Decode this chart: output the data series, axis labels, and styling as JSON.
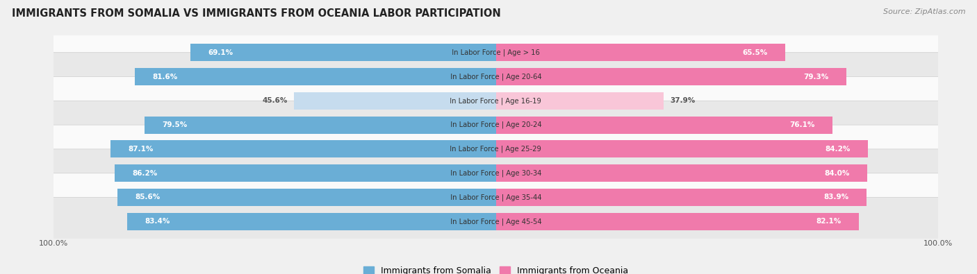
{
  "title": "IMMIGRANTS FROM SOMALIA VS IMMIGRANTS FROM OCEANIA LABOR PARTICIPATION",
  "source": "Source: ZipAtlas.com",
  "categories": [
    "In Labor Force | Age > 16",
    "In Labor Force | Age 20-64",
    "In Labor Force | Age 16-19",
    "In Labor Force | Age 20-24",
    "In Labor Force | Age 25-29",
    "In Labor Force | Age 30-34",
    "In Labor Force | Age 35-44",
    "In Labor Force | Age 45-54"
  ],
  "somalia_values": [
    69.1,
    81.6,
    45.6,
    79.5,
    87.1,
    86.2,
    85.6,
    83.4
  ],
  "oceania_values": [
    65.5,
    79.3,
    37.9,
    76.1,
    84.2,
    84.0,
    83.9,
    82.1
  ],
  "somalia_color": "#6aaed6",
  "oceania_color": "#f07aab",
  "somalia_color_light": "#c6dcee",
  "oceania_color_light": "#f9c6d8",
  "bar_height": 0.72,
  "background_color": "#f0f0f0",
  "row_bg_even": "#e8e8e8",
  "row_bg_odd": "#fafafa",
  "max_value": 100.0,
  "legend_somalia": "Immigrants from Somalia",
  "legend_oceania": "Immigrants from Oceania"
}
